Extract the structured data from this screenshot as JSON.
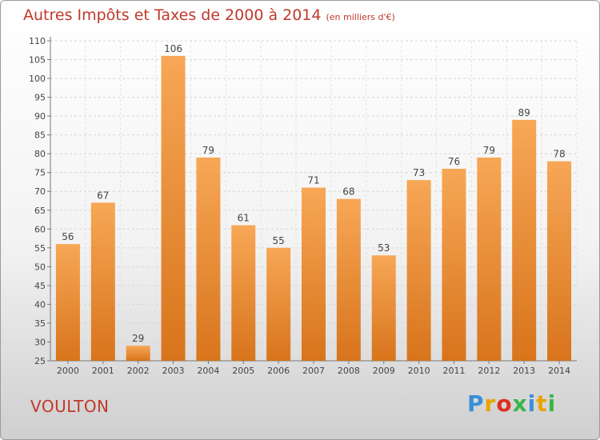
{
  "header": {
    "title": "Autres Impôts et Taxes de 2000 à 2014",
    "unit": "(en milliers d'€)"
  },
  "footer": {
    "place": "VOULTON",
    "logo": "Proxiti"
  },
  "colors": {
    "bar_light": "#f7a756",
    "bar_dark": "#d8741c",
    "title": "#c0392b"
  },
  "chart_data": {
    "type": "bar",
    "title": "Autres Impôts et Taxes de 2000 à 2014",
    "subtitle": "(en milliers d'€)",
    "xlabel": "",
    "ylabel": "",
    "categories": [
      "2000",
      "2001",
      "2002",
      "2003",
      "2004",
      "2005",
      "2006",
      "2007",
      "2008",
      "2009",
      "2010",
      "2011",
      "2012",
      "2013",
      "2014"
    ],
    "values": [
      56,
      67,
      29,
      106,
      79,
      61,
      55,
      71,
      68,
      53,
      73,
      76,
      79,
      89,
      78
    ],
    "ylim": [
      25,
      110
    ],
    "yticks": [
      25,
      30,
      35,
      40,
      45,
      50,
      55,
      60,
      65,
      70,
      75,
      80,
      85,
      90,
      95,
      100,
      105,
      110
    ],
    "grid": true,
    "legend": "none"
  }
}
